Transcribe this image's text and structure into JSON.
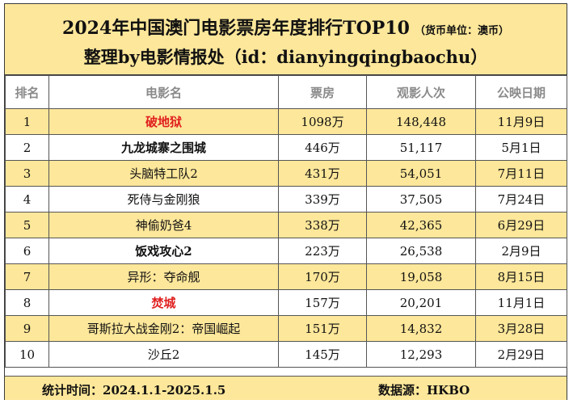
{
  "header": {
    "title": "2024年中国澳门电影票房年度排行TOP10",
    "unit_note": "（货币单位：澳币）",
    "subtitle": "整理by电影情报处（id：dianyingqingbaochu）"
  },
  "table": {
    "columns": [
      "排名",
      "电影名",
      "票房",
      "观影人次",
      "公映日期"
    ],
    "rows": [
      {
        "rank": "1",
        "title": "破地狱",
        "box_office": "1098万",
        "admissions": "148,448",
        "release_date": "11月9日",
        "highlight": true
      },
      {
        "rank": "2",
        "title": "九龙城寨之围城",
        "box_office": "446万",
        "admissions": "51,117",
        "release_date": "5月1日",
        "highlight": false
      },
      {
        "rank": "3",
        "title": "头脑特工队2",
        "box_office": "431万",
        "admissions": "54,051",
        "release_date": "7月11日",
        "highlight": false
      },
      {
        "rank": "4",
        "title": "死侍与金刚狼",
        "box_office": "339万",
        "admissions": "37,505",
        "release_date": "7月24日",
        "highlight": false
      },
      {
        "rank": "5",
        "title": "神偷奶爸4",
        "box_office": "338万",
        "admissions": "42,365",
        "release_date": "6月29日",
        "highlight": false
      },
      {
        "rank": "6",
        "title": "饭戏攻心2",
        "box_office": "223万",
        "admissions": "26,538",
        "release_date": "2月9日",
        "highlight": false
      },
      {
        "rank": "7",
        "title": "异形：夺命舰",
        "box_office": "170万",
        "admissions": "19,058",
        "release_date": "8月15日",
        "highlight": false
      },
      {
        "rank": "8",
        "title": "焚城",
        "box_office": "157万",
        "admissions": "20,201",
        "release_date": "11月1日",
        "highlight": true
      },
      {
        "rank": "9",
        "title": "哥斯拉大战金刚2：帝国崛起",
        "box_office": "151万",
        "admissions": "14,832",
        "release_date": "3月28日",
        "highlight": false
      },
      {
        "rank": "10",
        "title": "沙丘2",
        "box_office": "145万",
        "admissions": "12,293",
        "release_date": "2月29日",
        "highlight": false
      }
    ]
  },
  "footer": {
    "period": "统计时间：2024.1.1-2025.1.5",
    "source": "数据源：HKBO"
  },
  "colors": {
    "band": "#fde79a",
    "highlight_text": "#e02020"
  }
}
